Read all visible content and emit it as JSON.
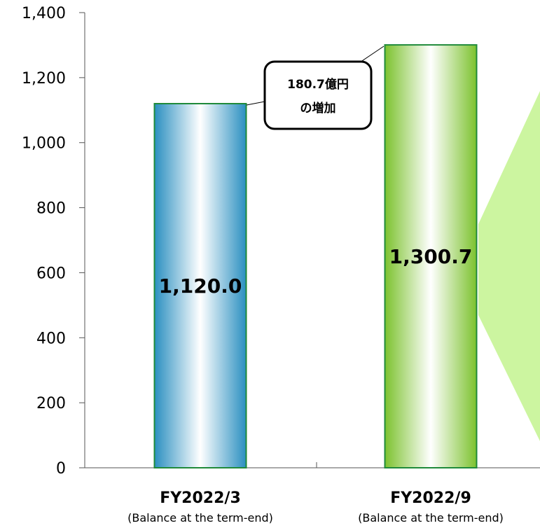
{
  "chart_data": {
    "type": "bar",
    "categories": [
      "FY2022/3",
      "FY2022/9"
    ],
    "category_sublabels": [
      "(Balance at the term-end)",
      "(Balance at the term-end)"
    ],
    "values": [
      1120.0,
      1300.7
    ],
    "value_labels": [
      "1,120.0",
      "1,300.7"
    ],
    "ylim": [
      0,
      1400
    ],
    "yticks": [
      0,
      200,
      400,
      600,
      800,
      1000,
      1200,
      1400
    ],
    "ytick_labels": [
      "0",
      "200",
      "400",
      "600",
      "800",
      "1,000",
      "1,200",
      "1,400"
    ],
    "title": "",
    "xlabel": "",
    "ylabel": "",
    "grid": false,
    "bar_colors": [
      "#2a8fc0",
      "#7cc22e"
    ],
    "bar_border_colors": [
      "#1f8a3a",
      "#1f8a3a"
    ],
    "annotation": {
      "lines": [
        "180.7億円",
        "の増加"
      ]
    },
    "arrow_color": "#ccf5a0"
  }
}
